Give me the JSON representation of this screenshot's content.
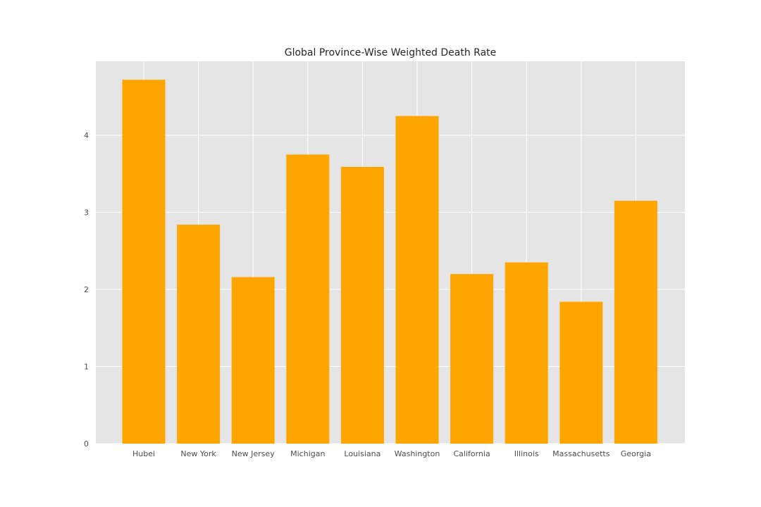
{
  "chart_data": {
    "type": "bar",
    "title": "Global Province-Wise Weighted Death Rate",
    "xlabel": "",
    "ylabel": "",
    "categories": [
      "Hubei",
      "New York",
      "New Jersey",
      "Michigan",
      "Louisiana",
      "Washington",
      "California",
      "Illinois",
      "Massachusetts",
      "Georgia"
    ],
    "values": [
      4.72,
      2.84,
      2.16,
      3.75,
      3.59,
      4.25,
      2.2,
      2.35,
      1.84,
      3.15
    ],
    "ylim": [
      0,
      4.96
    ],
    "yticks": [
      0,
      1,
      2,
      3,
      4
    ],
    "grid": true,
    "colors": {
      "bar": "#ffa500",
      "plot_background": "#e5e5e5",
      "grid": "#ffffff"
    }
  }
}
